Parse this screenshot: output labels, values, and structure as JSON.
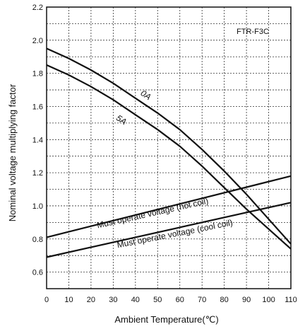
{
  "chart_data": {
    "type": "line",
    "model_label": "FTR-F3C",
    "xlabel": "Ambient Temperature(℃)",
    "ylabel": "Nominal voltage multiplying factor",
    "xlim": [
      0,
      110
    ],
    "ylim": [
      0.5,
      2.2
    ],
    "x_ticks": [
      0,
      10,
      20,
      30,
      40,
      50,
      60,
      70,
      80,
      90,
      100,
      110
    ],
    "y_ticks": [
      0.6,
      0.8,
      1.0,
      1.2,
      1.4,
      1.6,
      1.8,
      2.0,
      2.2
    ],
    "grid": true,
    "series": [
      {
        "name": "0A",
        "x": [
          0,
          10,
          20,
          30,
          40,
          50,
          60,
          70,
          80,
          90,
          100,
          110
        ],
        "y": [
          1.95,
          1.89,
          1.82,
          1.74,
          1.65,
          1.56,
          1.46,
          1.34,
          1.21,
          1.07,
          0.92,
          0.77
        ]
      },
      {
        "name": "5A",
        "x": [
          0,
          10,
          20,
          30,
          40,
          50,
          60,
          70,
          80,
          90,
          100,
          110
        ],
        "y": [
          1.85,
          1.79,
          1.72,
          1.64,
          1.55,
          1.46,
          1.36,
          1.24,
          1.11,
          0.98,
          0.86,
          0.74
        ]
      },
      {
        "name": "Must operate voltage (hot coil)",
        "x": [
          0,
          110
        ],
        "y": [
          0.81,
          1.18
        ]
      },
      {
        "name": "Must operate voltage (cool coil)",
        "x": [
          0,
          110
        ],
        "y": [
          0.69,
          1.02
        ]
      }
    ]
  }
}
